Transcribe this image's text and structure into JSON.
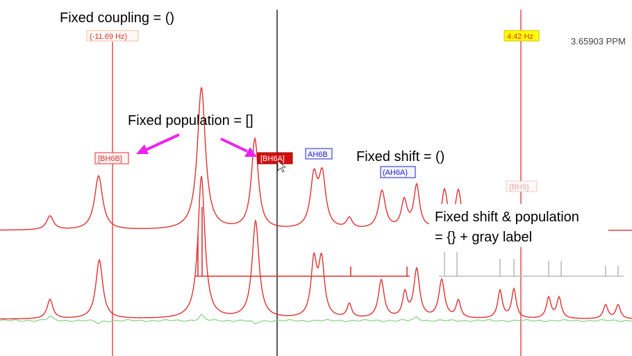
{
  "readout": {
    "ppm": "3.65903 PPM"
  },
  "annotations": {
    "fixed_coupling": "Fixed coupling = ()",
    "fixed_population": "Fixed population = []",
    "fixed_shift": "Fixed shift = ()",
    "fixed_shift_population_line1": "Fixed shift & population",
    "fixed_shift_population_line2": "= {} + gray label"
  },
  "coupling_labels": {
    "left": "(-11.69 Hz)",
    "right": "4.42 Hz"
  },
  "peak_labels": {
    "bh6b": "[BH6B]",
    "bh6a": "[BH6A]",
    "ah6b": "AH6B",
    "ah6a": "(AH6A)",
    "bh5": "{BH5}"
  },
  "colors": {
    "experimental": "#e03030",
    "simulated": "#e03030",
    "residual": "#80d080",
    "cursor": "#000000",
    "coupling_line": "#e03030",
    "arrow": "#ee22ee",
    "fixed_label_fill": "#d01010",
    "shift_label": "#2222cc",
    "gray_label": "#e8a8a8",
    "gray_stick": "#bbbbbb",
    "highlight_yellow": "#ffff00"
  },
  "chart_data": {
    "type": "line",
    "x_units": "ppm (unlabeled, decreasing to the right)",
    "xlim": [
      0,
      910
    ],
    "series": [
      {
        "role": "experimental spectrum (top trace)",
        "peaks": [
          {
            "x": 72,
            "h": 20,
            "w": 6
          },
          {
            "x": 142,
            "h": 78,
            "w": 7
          },
          {
            "x": 290,
            "h": 205,
            "w": 7
          },
          {
            "x": 367,
            "h": 130,
            "w": 6
          },
          {
            "x": 452,
            "h": 72,
            "w": 6
          },
          {
            "x": 464,
            "h": 74,
            "w": 6
          },
          {
            "x": 503,
            "h": 15,
            "w": 5
          },
          {
            "x": 550,
            "h": 55,
            "w": 6
          },
          {
            "x": 582,
            "h": 40,
            "w": 5
          },
          {
            "x": 600,
            "h": 62,
            "w": 5
          },
          {
            "x": 640,
            "h": 55,
            "w": 5
          },
          {
            "x": 660,
            "h": 55,
            "w": 5
          }
        ]
      },
      {
        "role": "simulated spectrum (middle trace)",
        "peaks": [
          {
            "x": 72,
            "h": 28,
            "w": 5
          },
          {
            "x": 143,
            "h": 85,
            "w": 6
          },
          {
            "x": 290,
            "h": 205,
            "w": 6
          },
          {
            "x": 368,
            "h": 140,
            "w": 6
          },
          {
            "x": 452,
            "h": 80,
            "w": 5
          },
          {
            "x": 463,
            "h": 80,
            "w": 5
          },
          {
            "x": 503,
            "h": 20,
            "w": 4
          },
          {
            "x": 549,
            "h": 55,
            "w": 5
          },
          {
            "x": 583,
            "h": 35,
            "w": 4
          },
          {
            "x": 600,
            "h": 70,
            "w": 5
          },
          {
            "x": 636,
            "h": 55,
            "w": 5
          },
          {
            "x": 660,
            "h": 25,
            "w": 4
          },
          {
            "x": 720,
            "h": 40,
            "w": 4
          },
          {
            "x": 740,
            "h": 42,
            "w": 4
          },
          {
            "x": 790,
            "h": 30,
            "w": 4
          },
          {
            "x": 805,
            "h": 30,
            "w": 4
          },
          {
            "x": 872,
            "h": 20,
            "w": 4
          },
          {
            "x": 890,
            "h": 20,
            "w": 4
          }
        ]
      },
      {
        "role": "residual (difference trace)",
        "peaks": [
          {
            "x": 72,
            "h": 6,
            "w": 4
          },
          {
            "x": 142,
            "h": -4,
            "w": 4
          },
          {
            "x": 290,
            "h": 8,
            "w": 4
          },
          {
            "x": 367,
            "h": -5,
            "w": 4
          },
          {
            "x": 600,
            "h": 5,
            "w": 4
          }
        ]
      }
    ],
    "sticks": [
      {
        "x": 285,
        "h": 60,
        "gray": false
      },
      {
        "x": 291,
        "h": 100,
        "gray": false
      },
      {
        "x": 505,
        "h": 14,
        "gray": false
      },
      {
        "x": 586,
        "h": 14,
        "gray": false
      },
      {
        "x": 640,
        "h": 35,
        "gray": true
      },
      {
        "x": 658,
        "h": 35,
        "gray": true
      },
      {
        "x": 720,
        "h": 25,
        "gray": true
      },
      {
        "x": 740,
        "h": 25,
        "gray": true
      },
      {
        "x": 790,
        "h": 22,
        "gray": true
      },
      {
        "x": 808,
        "h": 22,
        "gray": true
      },
      {
        "x": 872,
        "h": 15,
        "gray": true
      },
      {
        "x": 890,
        "h": 15,
        "gray": true
      }
    ]
  }
}
